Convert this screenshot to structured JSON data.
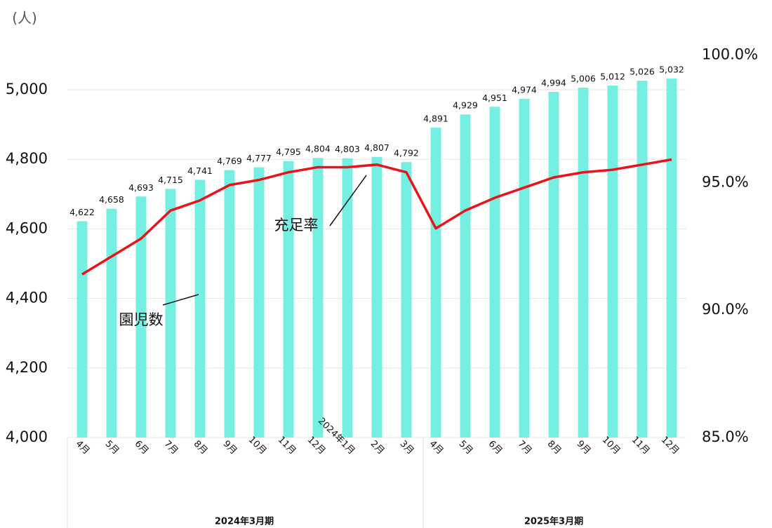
{
  "chart_data": {
    "type": "bar_line",
    "y_unit_label": "(人)",
    "categories": [
      "4月",
      "5月",
      "6月",
      "7月",
      "8月",
      "9月",
      "10月",
      "11月",
      "12月",
      "2024年1月",
      "2月",
      "3月",
      "4月",
      "5月",
      "6月",
      "7月",
      "8月",
      "9月",
      "10月",
      "11月",
      "12月"
    ],
    "groups": [
      {
        "label": "2024年3月期",
        "span": 12
      },
      {
        "label": "2025年3月期",
        "span": 9
      }
    ],
    "series": [
      {
        "name": "園児数",
        "type": "bar",
        "color": "#74efe2",
        "values": [
          4622,
          4658,
          4693,
          4715,
          4741,
          4769,
          4777,
          4795,
          4804,
          4803,
          4807,
          4792,
          4891,
          4929,
          4951,
          4974,
          4994,
          5006,
          5012,
          5026,
          5032
        ],
        "value_labels": [
          "4,622",
          "4,658",
          "4,693",
          "4,715",
          "4,741",
          "4,769",
          "4,777",
          "4,795",
          "4,804",
          "4,803",
          "4,807",
          "4,792",
          "4,891",
          "4,929",
          "4,951",
          "4,974",
          "4,994",
          "5,006",
          "5,012",
          "5,026",
          "5,032"
        ]
      },
      {
        "name": "充足率",
        "type": "line",
        "axis": "y2",
        "color": "#e8141a",
        "values": [
          91.4,
          92.1,
          92.8,
          93.9,
          94.3,
          94.9,
          95.1,
          95.4,
          95.6,
          95.6,
          95.7,
          95.4,
          93.2,
          93.9,
          94.4,
          94.8,
          95.2,
          95.4,
          95.5,
          95.7,
          95.9
        ]
      }
    ],
    "ylim": [
      4000,
      5100
    ],
    "yticks": [
      {
        "value": 4000,
        "label": "4,000"
      },
      {
        "value": 4200,
        "label": "4,200"
      },
      {
        "value": 4400,
        "label": "4,400"
      },
      {
        "value": 4600,
        "label": "4,600"
      },
      {
        "value": 4800,
        "label": "4,800"
      },
      {
        "value": 5000,
        "label": "5,000"
      }
    ],
    "y2lim": [
      85,
      100
    ],
    "y2ticks": [
      {
        "value": 85,
        "label": "85.0%"
      },
      {
        "value": 90,
        "label": "90.0%"
      },
      {
        "value": 95,
        "label": "95.0%"
      },
      {
        "value": 100,
        "label": "100.0%"
      }
    ],
    "grid": true
  }
}
